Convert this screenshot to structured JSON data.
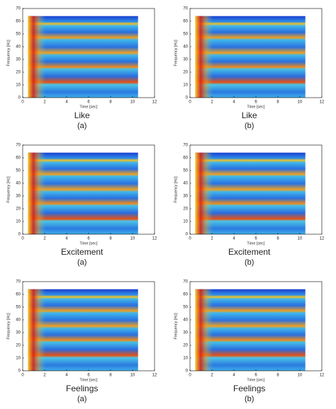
{
  "chart_data": [
    {
      "type": "heatmap",
      "xlabel": "Time [sec]",
      "ylabel": "Frequency [Hz]",
      "xlim": [
        0,
        12
      ],
      "ylim": [
        0,
        70
      ],
      "xticks": [
        0,
        2,
        4,
        6,
        8,
        10,
        12
      ],
      "yticks": [
        0,
        10,
        20,
        30,
        40,
        50,
        60,
        70
      ],
      "caption": "Like",
      "sublabel": "(a)"
    },
    {
      "type": "heatmap",
      "xlabel": "Time [sec]",
      "ylabel": "Frequency [Hz]",
      "xlim": [
        0,
        12
      ],
      "ylim": [
        0,
        70
      ],
      "xticks": [
        0,
        2,
        4,
        6,
        8,
        10,
        12
      ],
      "yticks": [
        0,
        10,
        20,
        30,
        40,
        50,
        60,
        70
      ],
      "caption": "Like",
      "sublabel": "(b)"
    },
    {
      "type": "heatmap",
      "xlabel": "Time [sec]",
      "ylabel": "Frequency [Hz]",
      "xlim": [
        0,
        12
      ],
      "ylim": [
        0,
        70
      ],
      "xticks": [
        0,
        2,
        4,
        6,
        8,
        10,
        12
      ],
      "yticks": [
        0,
        10,
        20,
        30,
        40,
        50,
        60,
        70
      ],
      "caption": "Excitement",
      "sublabel": "(a)"
    },
    {
      "type": "heatmap",
      "xlabel": "Time [sec]",
      "ylabel": "Frequency [Hz]",
      "xlim": [
        0,
        12
      ],
      "ylim": [
        0,
        70
      ],
      "xticks": [
        0,
        2,
        4,
        6,
        8,
        10,
        12
      ],
      "yticks": [
        0,
        10,
        20,
        30,
        40,
        50,
        60,
        70
      ],
      "caption": "Excitement",
      "sublabel": "(b)"
    },
    {
      "type": "heatmap",
      "xlabel": "Time [sec]",
      "ylabel": "Frequency [Hz]",
      "xlim": [
        0,
        12
      ],
      "ylim": [
        0,
        70
      ],
      "xticks": [
        0,
        2,
        4,
        6,
        8,
        10,
        12
      ],
      "yticks": [
        0,
        10,
        20,
        30,
        40,
        50,
        60,
        70
      ],
      "caption": "Feelings",
      "sublabel": "(a)"
    },
    {
      "type": "heatmap",
      "xlabel": "Time [sec]",
      "ylabel": "Frequency [Hz]",
      "xlim": [
        0,
        12
      ],
      "ylim": [
        0,
        70
      ],
      "xticks": [
        0,
        2,
        4,
        6,
        8,
        10,
        12
      ],
      "yticks": [
        0,
        10,
        20,
        30,
        40,
        50,
        60,
        70
      ],
      "caption": "Feelings",
      "sublabel": "(b)"
    }
  ]
}
